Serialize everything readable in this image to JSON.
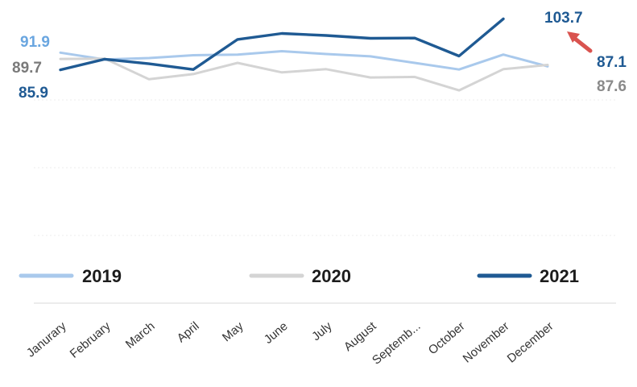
{
  "chart_data": {
    "type": "line",
    "title": "",
    "xlabel": "",
    "ylabel": "",
    "categories": [
      "Janurary",
      "February",
      "March",
      "April",
      "May",
      "June",
      "July",
      "August",
      "Septemb...",
      "October",
      "November",
      "December"
    ],
    "series": [
      {
        "name": "2019",
        "color": "#a9c9ec",
        "values": [
          91.9,
          89.5,
          90.0,
          91.0,
          91.2,
          92.4,
          91.4,
          90.6,
          88.3,
          86.0,
          91.2,
          87.1
        ]
      },
      {
        "name": "2020",
        "color": "#d4d4d4",
        "values": [
          89.7,
          89.8,
          82.6,
          84.4,
          88.3,
          85.0,
          86.1,
          83.2,
          83.4,
          78.7,
          86.1,
          87.6
        ]
      },
      {
        "name": "2021",
        "color": "#1f5a93",
        "values": [
          85.9,
          89.6,
          88.0,
          86.0,
          96.5,
          98.6,
          97.9,
          96.9,
          97.0,
          90.7,
          103.7,
          null
        ]
      }
    ],
    "annotations": [
      {
        "series": "2019",
        "text": "91.9",
        "color": "#6aa6e0"
      },
      {
        "series": "2020",
        "text": "89.7",
        "color": "#7a7a7a"
      },
      {
        "series": "2021",
        "text": "85.9",
        "color": "#1f5a93"
      },
      {
        "series": "2021",
        "text": "103.7",
        "color": "#1f5a93"
      },
      {
        "series": "2019",
        "text": "87.1",
        "color": "#1f5a93"
      },
      {
        "series": "2020",
        "text": "87.6",
        "color": "#8a8a8a"
      }
    ],
    "arrow_color": "#d9534f",
    "legend": "bottom",
    "grid": true
  }
}
